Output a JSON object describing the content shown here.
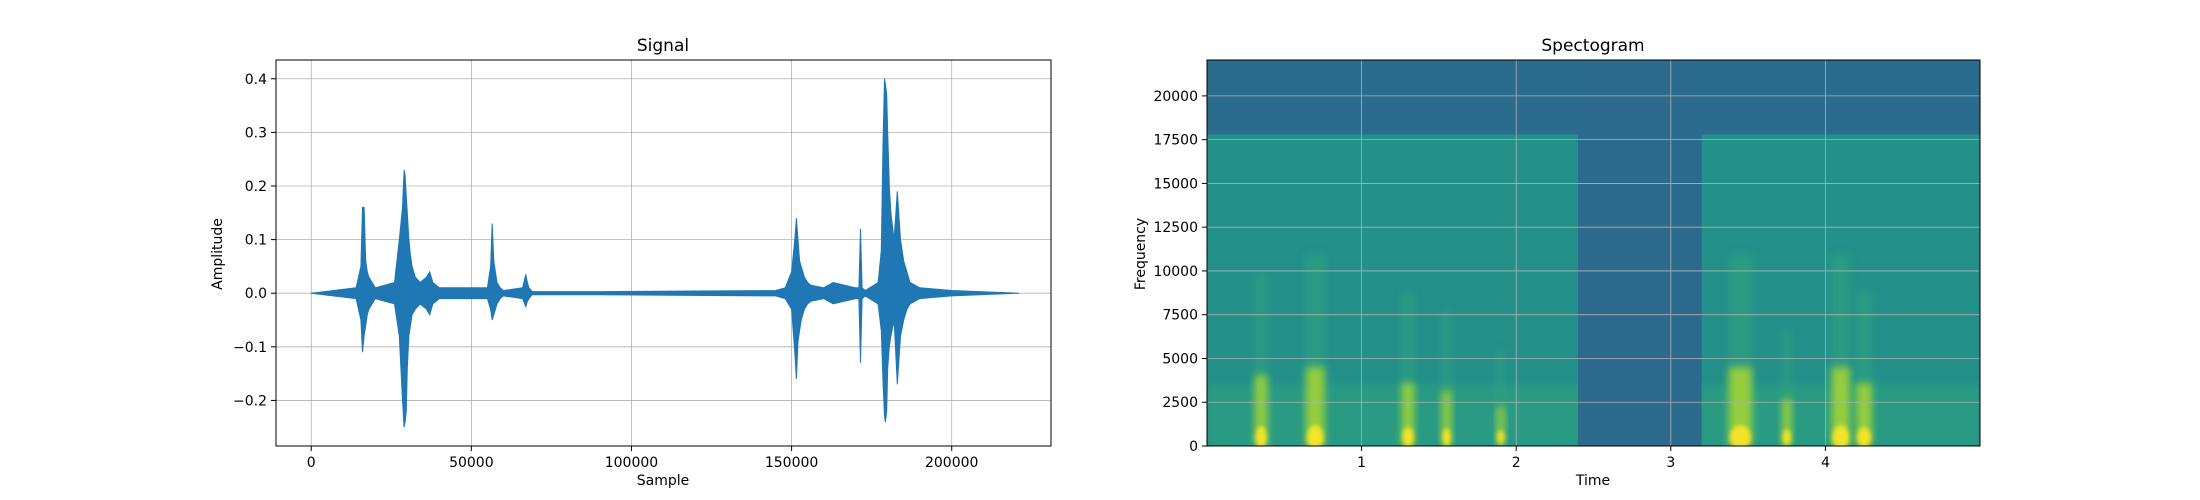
{
  "chart_data": [
    {
      "type": "line",
      "title": "Signal",
      "xlabel": "Sample",
      "ylabel": "Amplitude",
      "xlim": [
        -11000,
        231000
      ],
      "ylim": [
        -0.285,
        0.435
      ],
      "xticks": [
        0,
        50000,
        100000,
        150000,
        200000
      ],
      "xticklabels": [
        "0",
        "50000",
        "100000",
        "150000",
        "200000"
      ],
      "yticks": [
        -0.2,
        -0.1,
        0.0,
        0.1,
        0.2,
        0.3,
        0.4
      ],
      "yticklabels": [
        "−0.2",
        "−0.1",
        "0.0",
        "0.1",
        "0.2",
        "0.3",
        "0.4"
      ],
      "grid": true,
      "color": "#1f77b4",
      "series": [
        {
          "x": [
            0,
            14000,
            15500,
            16000,
            16500,
            17000,
            17500,
            18000,
            19000,
            20000,
            26000,
            27500,
            28500,
            29000,
            29300,
            29700,
            30000,
            30500,
            31000,
            31500,
            32500,
            34000,
            36000,
            37000,
            38000,
            40000,
            55000,
            56000,
            56500,
            57000,
            57500,
            58000,
            59000,
            60000,
            66000,
            67000,
            67500,
            68000,
            69000,
            90000,
            145000,
            148000,
            150000,
            151000,
            151500,
            152000,
            152500,
            153000,
            154000,
            155000,
            156000,
            160000,
            163000,
            170000,
            171000,
            171500,
            172000,
            173000,
            177000,
            178000,
            178500,
            179000,
            179300,
            179700,
            180000,
            180500,
            181000,
            182000,
            183000,
            184000,
            185000,
            186000,
            187000,
            190000,
            200000,
            221000
          ],
          "min": [
            0,
            -0.01,
            -0.05,
            -0.11,
            -0.08,
            -0.06,
            -0.04,
            -0.03,
            -0.02,
            -0.01,
            -0.02,
            -0.08,
            -0.2,
            -0.25,
            -0.24,
            -0.22,
            -0.14,
            -0.08,
            -0.06,
            -0.04,
            -0.03,
            -0.02,
            -0.03,
            -0.04,
            -0.02,
            -0.01,
            -0.01,
            -0.03,
            -0.05,
            -0.04,
            -0.03,
            -0.02,
            -0.01,
            -0.005,
            -0.01,
            -0.025,
            -0.015,
            -0.01,
            -0.003,
            -0.003,
            -0.005,
            -0.01,
            -0.03,
            -0.11,
            -0.16,
            -0.09,
            -0.07,
            -0.05,
            -0.03,
            -0.02,
            -0.015,
            -0.01,
            -0.02,
            -0.01,
            -0.01,
            -0.13,
            -0.01,
            -0.005,
            -0.02,
            -0.07,
            -0.16,
            -0.23,
            -0.24,
            -0.22,
            -0.14,
            -0.1,
            -0.08,
            -0.05,
            -0.17,
            -0.08,
            -0.05,
            -0.03,
            -0.02,
            -0.01,
            -0.005,
            0
          ],
          "max": [
            0,
            0.01,
            0.05,
            0.16,
            0.16,
            0.06,
            0.04,
            0.03,
            0.02,
            0.01,
            0.02,
            0.1,
            0.16,
            0.23,
            0.22,
            0.18,
            0.15,
            0.1,
            0.07,
            0.05,
            0.03,
            0.02,
            0.03,
            0.04,
            0.02,
            0.01,
            0.01,
            0.05,
            0.13,
            0.06,
            0.04,
            0.02,
            0.01,
            0.005,
            0.01,
            0.035,
            0.02,
            0.01,
            0.003,
            0.003,
            0.005,
            0.01,
            0.04,
            0.1,
            0.14,
            0.1,
            0.06,
            0.05,
            0.03,
            0.02,
            0.015,
            0.01,
            0.02,
            0.01,
            0.01,
            0.12,
            0.01,
            0.005,
            0.02,
            0.08,
            0.27,
            0.4,
            0.39,
            0.37,
            0.3,
            0.2,
            0.15,
            0.1,
            0.19,
            0.1,
            0.06,
            0.04,
            0.02,
            0.01,
            0.005,
            0
          ]
        }
      ]
    },
    {
      "type": "heatmap",
      "title": "Spectogram",
      "xlabel": "Time",
      "ylabel": "Frequency",
      "xlim": [
        0,
        5.0
      ],
      "ylim": [
        0,
        22050
      ],
      "xticks": [
        1,
        2,
        3,
        4
      ],
      "xticklabels": [
        "1",
        "2",
        "3",
        "4"
      ],
      "yticks": [
        0,
        2500,
        5000,
        7500,
        10000,
        12500,
        15000,
        17500,
        20000
      ],
      "yticklabels": [
        "0",
        "2500",
        "5000",
        "7500",
        "10000",
        "12500",
        "15000",
        "17500",
        "20000"
      ],
      "grid": true,
      "colormap": "viridis",
      "colors": {
        "high_band": "#2b6c8e",
        "body": "#23908a",
        "silence": "#2c6b8e",
        "low_band": "#2da47f",
        "hot": "#b9de28",
        "peak": "#fde725"
      },
      "full_band_cutoff_hz": 17800,
      "quiet_intervals": [
        [
          2.4,
          3.2
        ]
      ],
      "speech_bursts": [
        {
          "t": 0.35,
          "w": 0.08,
          "intensity": 0.9
        },
        {
          "t": 0.7,
          "w": 0.12,
          "intensity": 1.0
        },
        {
          "t": 1.3,
          "w": 0.08,
          "intensity": 0.8
        },
        {
          "t": 1.55,
          "w": 0.06,
          "intensity": 0.7
        },
        {
          "t": 1.9,
          "w": 0.05,
          "intensity": 0.5
        },
        {
          "t": 3.45,
          "w": 0.15,
          "intensity": 1.0
        },
        {
          "t": 3.75,
          "w": 0.06,
          "intensity": 0.6
        },
        {
          "t": 4.1,
          "w": 0.12,
          "intensity": 1.0
        },
        {
          "t": 4.25,
          "w": 0.1,
          "intensity": 0.8
        }
      ]
    }
  ]
}
